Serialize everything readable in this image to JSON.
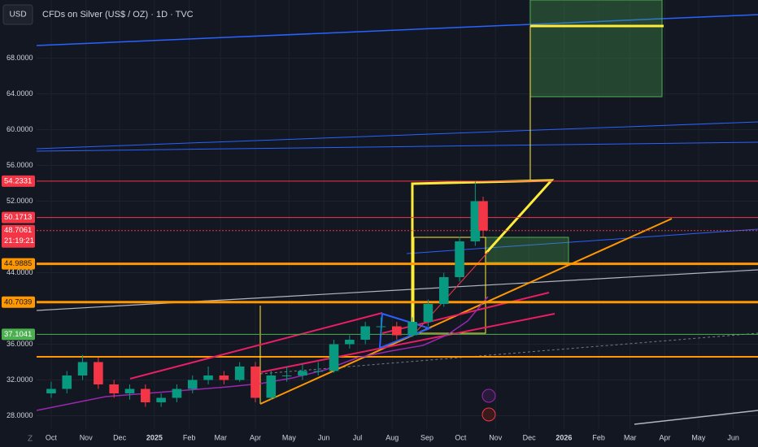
{
  "header": {
    "currency": "USD",
    "title": "CFDs on Silver (US$ / OZ) · 1D · TVC"
  },
  "chart_data": {
    "type": "candlestick",
    "x": [
      0,
      14,
      28,
      42,
      56,
      70,
      84,
      98,
      112,
      126,
      140,
      154,
      168,
      182,
      196,
      210,
      224,
      238,
      252,
      266,
      280,
      294,
      308,
      322,
      336,
      350,
      364,
      378,
      385
    ],
    "open": [
      30.5,
      31,
      32.5,
      34,
      31.5,
      30.5,
      31,
      29.5,
      30,
      31,
      32,
      32.5,
      32,
      33.5,
      30,
      32.5,
      32.5,
      33,
      33,
      36,
      36.5,
      38,
      38,
      37,
      38.5,
      40.5,
      43.5,
      47.5,
      52
    ],
    "high": [
      31.8,
      33,
      34.8,
      34.5,
      32,
      31.5,
      31.5,
      30.5,
      31.5,
      32.5,
      33.5,
      33,
      34,
      34,
      33,
      33.5,
      33.8,
      34,
      36.5,
      37,
      38.5,
      39,
      38.5,
      39,
      41,
      44,
      48,
      54.2,
      52.5
    ],
    "low": [
      30,
      30.5,
      32,
      31,
      30,
      29.8,
      29,
      29,
      29.5,
      30.5,
      31.5,
      31.5,
      31.8,
      29.5,
      29.8,
      31.8,
      32,
      32.5,
      32.8,
      35.5,
      36,
      37.2,
      36.5,
      36.8,
      38,
      40.2,
      43,
      47,
      48
    ],
    "close": [
      31,
      32.5,
      34,
      31.5,
      30.5,
      31,
      29.5,
      30,
      31,
      32,
      32.5,
      32,
      33.5,
      30,
      32.5,
      32.5,
      33,
      33,
      36,
      36.5,
      38,
      38,
      37,
      38.5,
      40.5,
      43.5,
      47.5,
      52,
      48.7061
    ],
    "up_color": "#089981",
    "down_color": "#f23645",
    "xlim": [
      -13,
      630
    ],
    "xticks": [
      {
        "value": 0,
        "label": "Oct"
      },
      {
        "value": 31,
        "label": "Nov"
      },
      {
        "value": 61,
        "label": "Dec"
      },
      {
        "value": 92,
        "label": "2025"
      },
      {
        "value": 123,
        "label": "Feb"
      },
      {
        "value": 151,
        "label": "Mar"
      },
      {
        "value": 182,
        "label": "Apr"
      },
      {
        "value": 212,
        "label": "May"
      },
      {
        "value": 243,
        "label": "Jun"
      },
      {
        "value": 273,
        "label": "Jul"
      },
      {
        "value": 304,
        "label": "Aug"
      },
      {
        "value": 335,
        "label": "Sep"
      },
      {
        "value": 365,
        "label": "Oct"
      },
      {
        "value": 396,
        "label": "Nov"
      },
      {
        "value": 426,
        "label": "Dec"
      },
      {
        "value": 457,
        "label": "2026"
      },
      {
        "value": 488,
        "label": "Feb"
      },
      {
        "value": 516,
        "label": "Mar"
      },
      {
        "value": 547,
        "label": "Apr"
      },
      {
        "value": 577,
        "label": "May"
      },
      {
        "value": 608,
        "label": "Jun"
      }
    ],
    "ylim": [
      26.5,
      74.5
    ],
    "yticks": [
      {
        "value": 68,
        "label": "68.0000"
      },
      {
        "value": 64,
        "label": "64.0000"
      },
      {
        "value": 60,
        "label": "60.0000"
      },
      {
        "value": 56,
        "label": "56.0000"
      },
      {
        "value": 52,
        "label": "52.0000"
      },
      {
        "value": 44,
        "label": "44.0000"
      },
      {
        "value": 36,
        "label": "36.0000"
      },
      {
        "value": 32,
        "label": "32.0000"
      },
      {
        "value": 28,
        "label": "28.0000"
      }
    ],
    "price_levels": [
      {
        "value": 54.2331,
        "color": "#f23645"
      },
      {
        "value": 50.1713,
        "color": "#f23645"
      },
      {
        "value": 48.7061,
        "color": "#f23645",
        "countdown": "21:19:21"
      },
      {
        "value": 44.9885,
        "color": "#ff9800"
      },
      {
        "value": 40.7039,
        "color": "#ff9800"
      },
      {
        "value": 37.1041,
        "color": "#4caf50"
      }
    ]
  },
  "footer": {
    "label": "Z"
  }
}
